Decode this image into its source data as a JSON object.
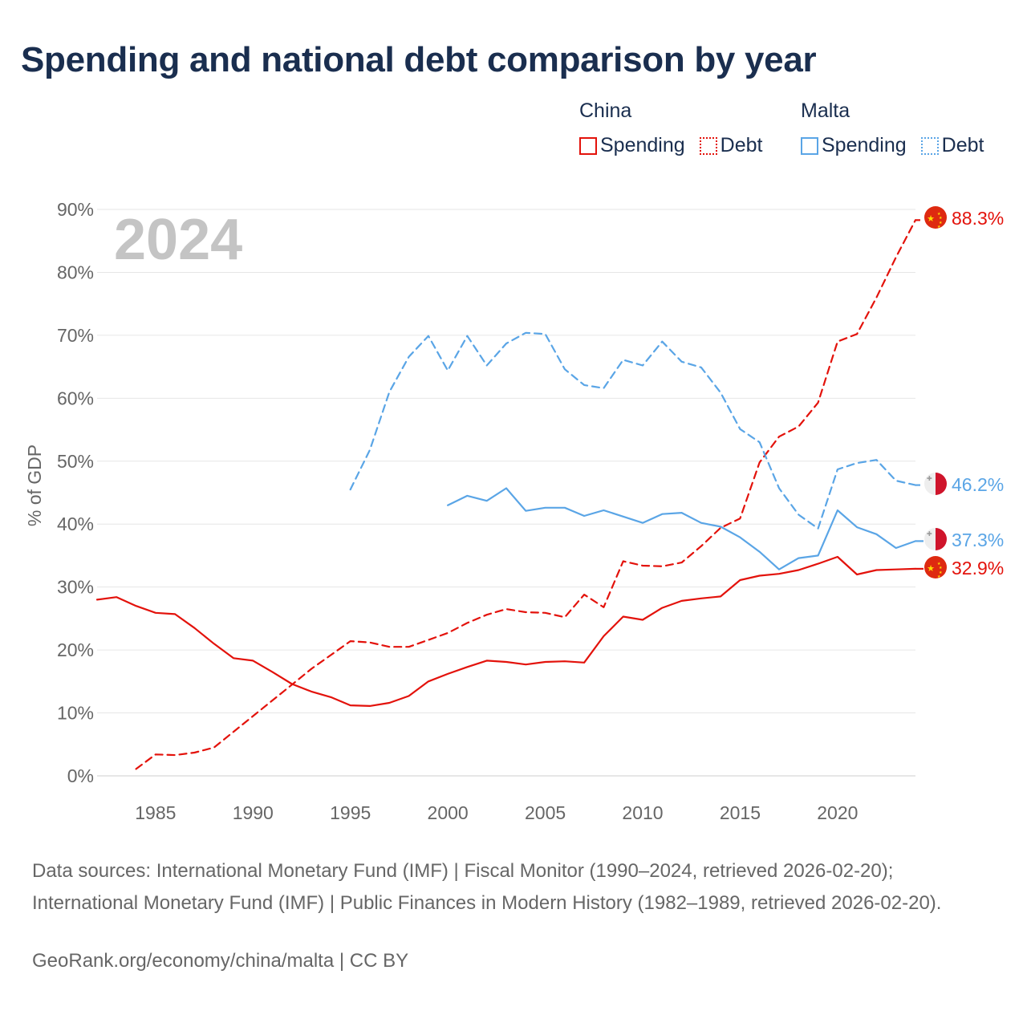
{
  "title": "Spending and national debt comparison by year",
  "legend": {
    "groups": [
      {
        "country": "China",
        "color": "#e3120b",
        "items": [
          {
            "label": "Spending",
            "style": "solid"
          },
          {
            "label": "Debt",
            "style": "dotted"
          }
        ]
      },
      {
        "country": "Malta",
        "color": "#5aa5e6",
        "items": [
          {
            "label": "Spending",
            "style": "solid"
          },
          {
            "label": "Debt",
            "style": "dotted"
          }
        ]
      }
    ]
  },
  "chart_data": {
    "type": "line",
    "watermark": "2024",
    "ylabel": "% of GDP",
    "xlabel": "",
    "xlim": [
      1982,
      2024
    ],
    "ylim": [
      0,
      90
    ],
    "y_ticks": [
      "0%",
      "10%",
      "20%",
      "30%",
      "40%",
      "50%",
      "60%",
      "70%",
      "80%",
      "90%"
    ],
    "x_ticks": [
      "1985",
      "1990",
      "1995",
      "2000",
      "2005",
      "2010",
      "2015",
      "2020"
    ],
    "gridlines": true,
    "series": [
      {
        "name": "China Spending",
        "country": "China",
        "color": "#e3120b",
        "style": "solid",
        "end_label": "32.9%",
        "x": [
          1982,
          1983,
          1984,
          1985,
          1986,
          1987,
          1988,
          1989,
          1990,
          1991,
          1992,
          1993,
          1994,
          1995,
          1996,
          1997,
          1998,
          1999,
          2000,
          2001,
          2002,
          2003,
          2004,
          2005,
          2006,
          2007,
          2008,
          2009,
          2010,
          2011,
          2012,
          2013,
          2014,
          2015,
          2016,
          2017,
          2018,
          2019,
          2020,
          2021,
          2022,
          2023,
          2024
        ],
        "values": [
          28.0,
          28.4,
          27.0,
          25.9,
          25.7,
          23.5,
          21.0,
          18.7,
          18.3,
          16.5,
          14.6,
          13.4,
          12.5,
          11.2,
          11.1,
          11.6,
          12.7,
          15.0,
          16.2,
          17.3,
          18.3,
          18.1,
          17.7,
          18.1,
          18.2,
          18.0,
          22.2,
          25.3,
          24.8,
          26.7,
          27.8,
          28.2,
          28.5,
          31.1,
          31.8,
          32.1,
          32.7,
          33.7,
          34.8,
          32.0,
          32.7,
          32.8,
          32.9
        ]
      },
      {
        "name": "China Debt",
        "country": "China",
        "color": "#e3120b",
        "style": "dashed",
        "end_label": "88.3%",
        "x": [
          1984,
          1985,
          1986,
          1987,
          1988,
          1989,
          1990,
          1991,
          1992,
          1993,
          1994,
          1995,
          1996,
          1997,
          1998,
          1999,
          2000,
          2001,
          2002,
          2003,
          2004,
          2005,
          2006,
          2007,
          2008,
          2009,
          2010,
          2011,
          2012,
          2013,
          2014,
          2015,
          2016,
          2017,
          2018,
          2019,
          2020,
          2021,
          2022,
          2023,
          2024
        ],
        "values": [
          1.1,
          3.4,
          3.3,
          3.7,
          4.5,
          7.0,
          9.5,
          12.0,
          14.5,
          17.0,
          19.2,
          21.4,
          21.2,
          20.5,
          20.5,
          21.6,
          22.7,
          24.3,
          25.6,
          26.5,
          26.0,
          25.9,
          25.2,
          28.8,
          26.8,
          34.1,
          33.4,
          33.3,
          33.9,
          36.5,
          39.4,
          40.9,
          49.8,
          53.9,
          55.5,
          59.3,
          69.0,
          70.2,
          76.0,
          82.4,
          88.3
        ]
      },
      {
        "name": "Malta Spending",
        "country": "Malta",
        "color": "#5aa5e6",
        "style": "solid",
        "end_label": "37.3%",
        "x": [
          2000,
          2001,
          2002,
          2003,
          2004,
          2005,
          2006,
          2007,
          2008,
          2009,
          2010,
          2011,
          2012,
          2013,
          2014,
          2015,
          2016,
          2017,
          2018,
          2019,
          2020,
          2021,
          2022,
          2023,
          2024
        ],
        "values": [
          43.0,
          44.5,
          43.7,
          45.7,
          42.1,
          42.6,
          42.6,
          41.3,
          42.2,
          41.2,
          40.2,
          41.6,
          41.8,
          40.2,
          39.6,
          37.9,
          35.6,
          32.8,
          34.6,
          35.0,
          42.2,
          39.5,
          38.4,
          36.2,
          37.3
        ]
      },
      {
        "name": "Malta Debt",
        "country": "Malta",
        "color": "#5aa5e6",
        "style": "dashed",
        "end_label": "46.2%",
        "x": [
          1995,
          1996,
          1997,
          1998,
          1999,
          2000,
          2001,
          2002,
          2003,
          2004,
          2005,
          2006,
          2007,
          2008,
          2009,
          2010,
          2011,
          2012,
          2013,
          2014,
          2015,
          2016,
          2017,
          2018,
          2019,
          2020,
          2021,
          2022,
          2023,
          2024
        ],
        "values": [
          45.5,
          51.8,
          61.0,
          66.6,
          69.9,
          64.4,
          69.9,
          65.2,
          68.7,
          70.4,
          70.2,
          64.6,
          62.1,
          61.6,
          66.1,
          65.2,
          69.0,
          65.8,
          64.9,
          60.9,
          55.1,
          53.0,
          45.7,
          41.5,
          39.3,
          48.7,
          49.7,
          50.2,
          46.9,
          46.2
        ]
      }
    ]
  },
  "sources_text": "Data sources: International Monetary Fund (IMF) | Fiscal Monitor (1990–2024, retrieved 2026-02-20); International Monetary Fund (IMF) | Public Finances in Modern History (1982–1989, retrieved 2026-02-20).",
  "footer_text": "GeoRank.org/economy/china/malta | CC BY",
  "colors": {
    "china": "#e3120b",
    "malta": "#5aa5e6",
    "title": "#1a2e4f",
    "axis_text": "#666666",
    "grid": "#e6e6e6",
    "watermark": "#c4c4c4"
  },
  "icons": {
    "china": "china-flag-icon",
    "malta": "malta-flag-icon"
  }
}
